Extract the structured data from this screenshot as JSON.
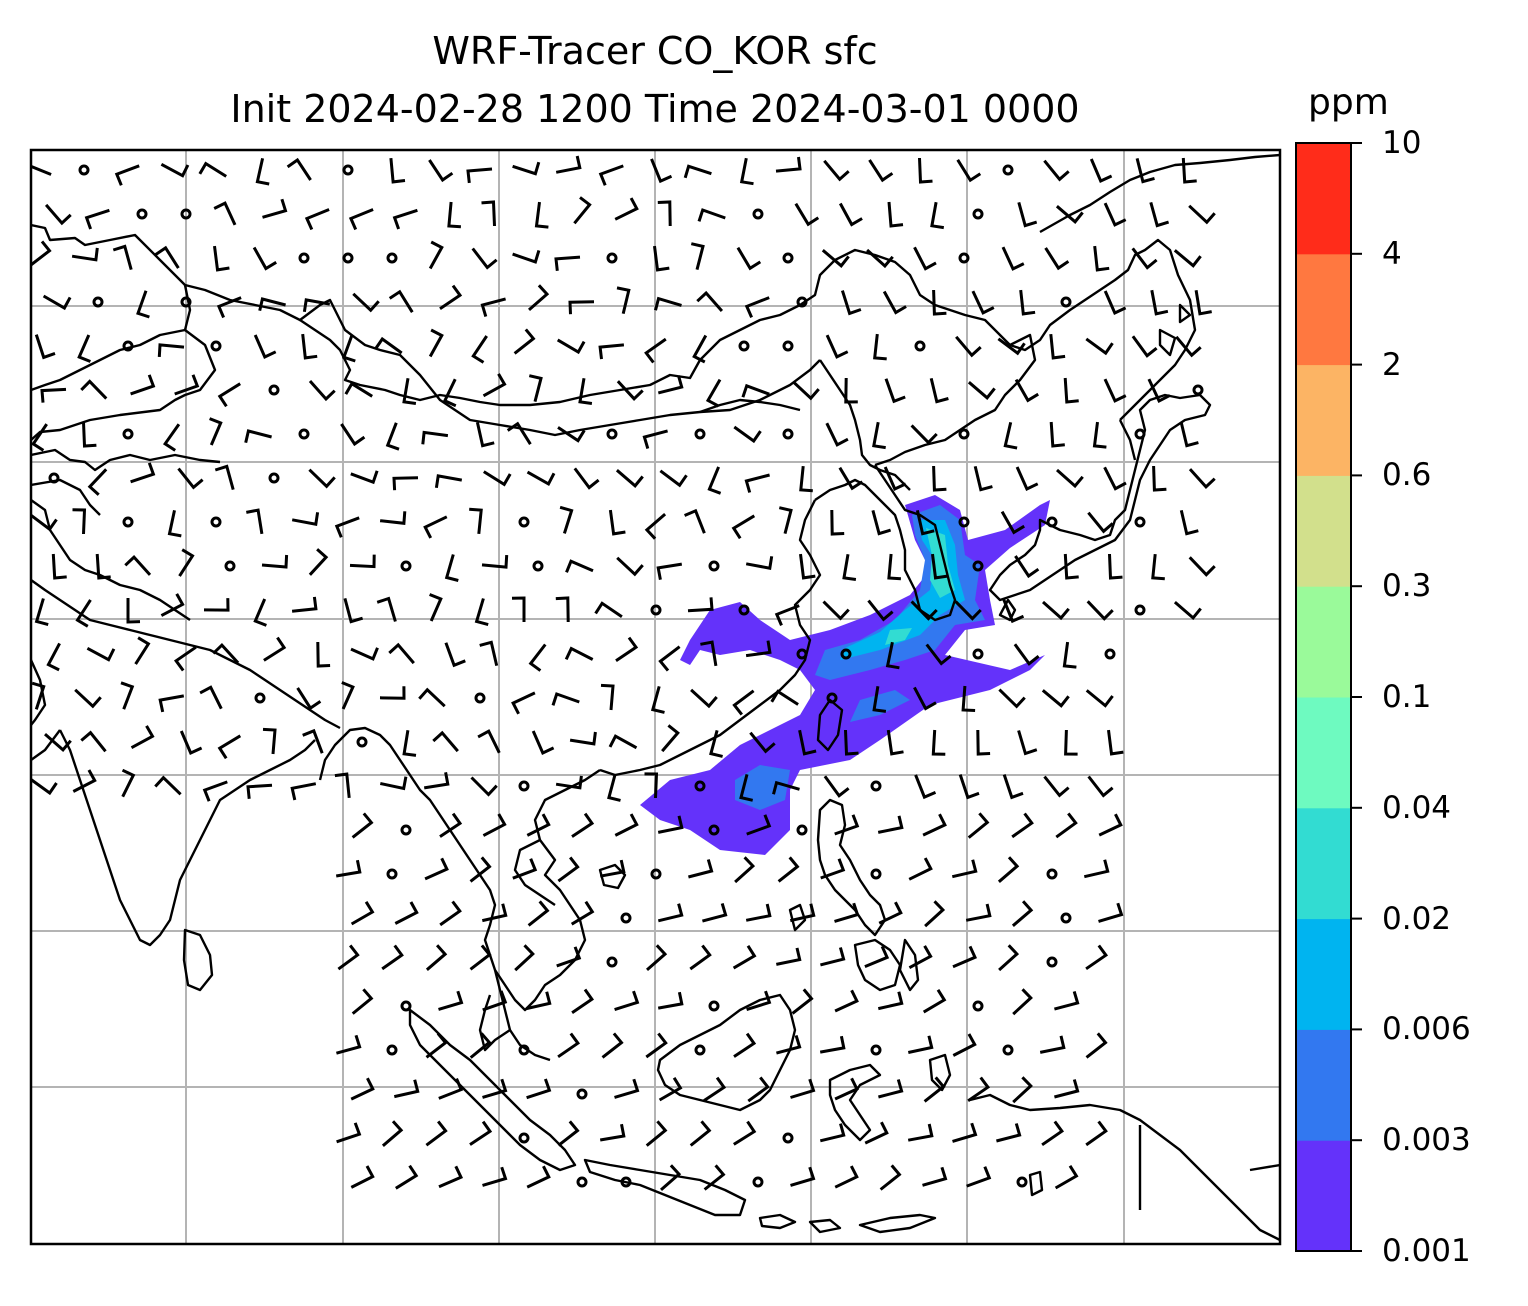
{
  "title": {
    "line1": "WRF-Tracer CO_KOR sfc",
    "line2": "Init 2024-02-28 1200 Time 2024-03-01 0000"
  },
  "colorbar": {
    "unit": "ppm",
    "tick_labels": [
      "0.001",
      "0.003",
      "0.006",
      "0.02",
      "0.04",
      "0.1",
      "0.3",
      "0.6",
      "2",
      "4",
      "10"
    ],
    "colors": [
      "#6432fa",
      "#3278f0",
      "#00b4f0",
      "#32dcd2",
      "#6efac0",
      "#9afa9a",
      "#d2e08c",
      "#fcb464",
      "#ff7840",
      "#ff2c1a"
    ]
  },
  "map": {
    "region": "East and Southeast Asia",
    "field": "CO_KOR tracer concentration (ppm)",
    "overlay": "wind barbs",
    "gridlines": true
  }
}
